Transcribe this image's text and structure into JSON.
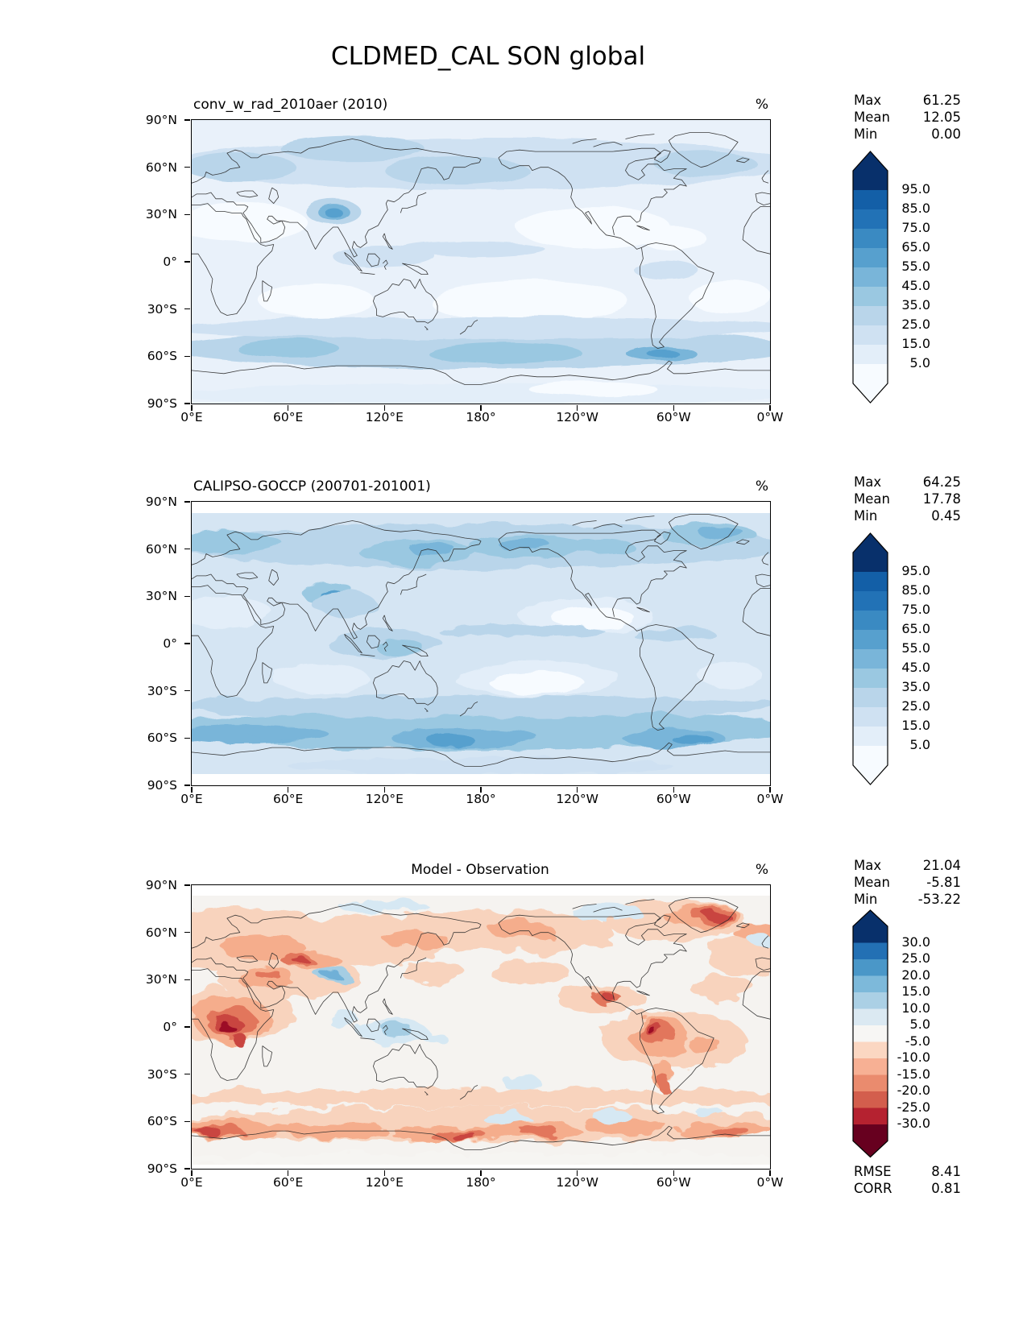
{
  "title": "CLDMED_CAL SON global",
  "lat_ticks": [
    "90°N",
    "60°N",
    "30°N",
    "0°",
    "30°S",
    "60°S",
    "90°S"
  ],
  "lon_ticks": [
    "0°E",
    "60°E",
    "120°E",
    "180°",
    "120°W",
    "60°W",
    "0°W"
  ],
  "panels": [
    {
      "id": "model",
      "title": "conv_w_rad_2010aer (2010)",
      "title_align": "left",
      "units": "%",
      "stats": [
        {
          "label": "Max",
          "value": "61.25"
        },
        {
          "label": "Mean",
          "value": "12.05"
        },
        {
          "label": "Min",
          "value": "0.00"
        }
      ],
      "colorbar": {
        "ticks": [
          "95.0",
          "85.0",
          "75.0",
          "65.0",
          "55.0",
          "45.0",
          "35.0",
          "25.0",
          "15.0",
          "5.0"
        ]
      }
    },
    {
      "id": "obs",
      "title": "CALIPSO-GOCCP (200701-201001)",
      "title_align": "left",
      "units": "%",
      "stats": [
        {
          "label": "Max",
          "value": "64.25"
        },
        {
          "label": "Mean",
          "value": "17.78"
        },
        {
          "label": "Min",
          "value": "0.45"
        }
      ],
      "colorbar": {
        "ticks": [
          "95.0",
          "85.0",
          "75.0",
          "65.0",
          "55.0",
          "45.0",
          "35.0",
          "25.0",
          "15.0",
          "5.0"
        ]
      }
    },
    {
      "id": "diff",
      "title": "Model - Observation",
      "title_align": "center",
      "units": "%",
      "stats": [
        {
          "label": "Max",
          "value": "21.04"
        },
        {
          "label": "Mean",
          "value": "-5.81"
        },
        {
          "label": "Min",
          "value": "-53.22"
        }
      ],
      "colorbar": {
        "ticks": [
          "30.0",
          "25.0",
          "20.0",
          "15.0",
          "10.0",
          "5.0",
          "-5.0",
          "-10.0",
          "-15.0",
          "-20.0",
          "-25.0",
          "-30.0"
        ]
      },
      "extra": [
        {
          "label": "RMSE",
          "value": "8.41"
        },
        {
          "label": "CORR",
          "value": "0.81"
        }
      ]
    }
  ],
  "colors": {
    "blues_bands_bottom_up": [
      "#f7fbff",
      "#e3eef9",
      "#cfe1f2",
      "#b9d5ea",
      "#9ac8e1",
      "#79b5d9",
      "#57a0ce",
      "#3a8ac2",
      "#2272b6",
      "#135fa7",
      "#08306b"
    ],
    "diff_bands_top_down": [
      "#08306b",
      "#2370b4",
      "#4a97c8",
      "#7db9da",
      "#abd0e5",
      "#dbe9f2",
      "#f7f6f4",
      "#fbd7c2",
      "#f7b094",
      "#ea8b6e",
      "#d35e4d",
      "#b52230",
      "#67001f"
    ],
    "coastline": "#2b2b2b",
    "map_bg_model": "#e9f1fa",
    "map_bg_obs": "#d5e5f3",
    "map_bg_diff": "#f5f3f0",
    "diff_blob": {
      "r1": "#f8d3bd",
      "r2": "#f5ad8c",
      "r3": "#e2765b",
      "r4": "#c94440",
      "r5": "#9c1127",
      "b1": "#d6e8f3",
      "b2": "#a5cde3",
      "b3": "#6fb0d7",
      "w": "#f6f5f2"
    }
  },
  "chart_data": [
    {
      "type": "heatmap",
      "subtype": "filled_contour_world_map",
      "title": "conv_w_rad_2010aer (2010)",
      "units": "%",
      "projection": "equirectangular_lon0_360",
      "x_ticks": [
        "0°E",
        "60°E",
        "120°E",
        "180°",
        "120°W",
        "60°W",
        "0°W"
      ],
      "y_ticks": [
        "90°N",
        "60°N",
        "30°N",
        "0°",
        "30°S",
        "60°S",
        "90°S"
      ],
      "levels": [
        5.0,
        15.0,
        25.0,
        35.0,
        45.0,
        55.0,
        65.0,
        75.0,
        85.0,
        95.0
      ],
      "colormap": "Blues",
      "extend": "both",
      "stats": {
        "max": 61.25,
        "mean": 12.05,
        "min": 0.0
      }
    },
    {
      "type": "heatmap",
      "subtype": "filled_contour_world_map",
      "title": "CALIPSO-GOCCP (200701-201001)",
      "units": "%",
      "projection": "equirectangular_lon0_360",
      "x_ticks": [
        "0°E",
        "60°E",
        "120°E",
        "180°",
        "120°W",
        "60°W",
        "0°W"
      ],
      "y_ticks": [
        "90°N",
        "60°N",
        "30°N",
        "0°",
        "30°S",
        "60°S",
        "90°S"
      ],
      "levels": [
        5.0,
        15.0,
        25.0,
        35.0,
        45.0,
        55.0,
        65.0,
        75.0,
        85.0,
        95.0
      ],
      "colormap": "Blues",
      "extend": "both",
      "stats": {
        "max": 64.25,
        "mean": 17.78,
        "min": 0.45
      }
    },
    {
      "type": "heatmap",
      "subtype": "filled_contour_world_map",
      "title": "Model - Observation",
      "units": "%",
      "projection": "equirectangular_lon0_360",
      "x_ticks": [
        "0°E",
        "60°E",
        "120°E",
        "180°",
        "120°W",
        "60°W",
        "0°W"
      ],
      "y_ticks": [
        "90°N",
        "60°N",
        "30°N",
        "0°",
        "30°S",
        "60°S",
        "90°S"
      ],
      "levels": [
        -30.0,
        -25.0,
        -20.0,
        -15.0,
        -10.0,
        -5.0,
        5.0,
        10.0,
        15.0,
        20.0,
        25.0,
        30.0
      ],
      "colormap": "RdBu",
      "extend": "both",
      "stats": {
        "max": 21.04,
        "mean": -5.81,
        "min": -53.22
      },
      "rmse": 8.41,
      "corr": 0.81
    }
  ]
}
